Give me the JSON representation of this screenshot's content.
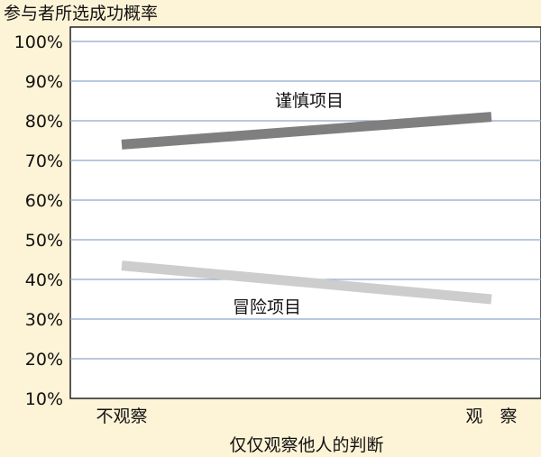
{
  "chart_data": {
    "type": "line",
    "ylabel": "参与者所选成功概率",
    "xlabel": "仅仅观察他人的判断",
    "categories": [
      "不观察",
      "观　察"
    ],
    "yticks": [
      "10%",
      "20%",
      "30%",
      "40%",
      "50%",
      "60%",
      "70%",
      "80%",
      "90%",
      "100%"
    ],
    "ylim": [
      10,
      100
    ],
    "grid": true,
    "series": [
      {
        "name": "谨慎项目",
        "values": [
          74,
          81
        ],
        "color": "#7f7f7f"
      },
      {
        "name": "冒险项目",
        "values": [
          43.5,
          35
        ],
        "color": "#cdcdcd"
      }
    ]
  }
}
